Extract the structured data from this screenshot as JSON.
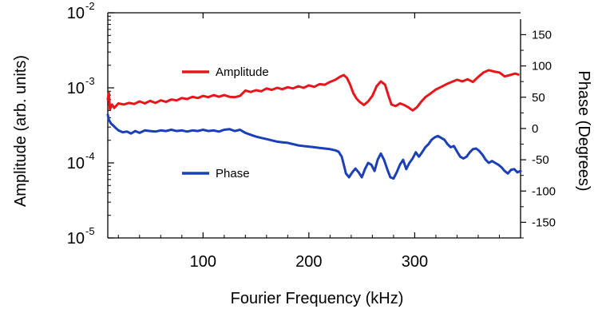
{
  "chart_data": {
    "type": "line",
    "title": "",
    "xlabel": "Fourier Frequency (kHz)",
    "ylabel_left": "Amplitude (arb. units)",
    "ylabel_right": "Phase (Degrees)",
    "x_range": [
      10,
      400
    ],
    "left_axis": {
      "scale": "log",
      "range": [
        1e-05,
        0.01
      ],
      "ticks": [
        {
          "value": 1e-05,
          "base": "10",
          "exp": "-5"
        },
        {
          "value": 0.0001,
          "base": "10",
          "exp": "-4"
        },
        {
          "value": 0.001,
          "base": "10",
          "exp": "-3"
        },
        {
          "value": 0.01,
          "base": "10",
          "exp": "-2"
        }
      ]
    },
    "right_axis": {
      "scale": "linear",
      "range": [
        -175,
        185
      ],
      "ticks": [
        "150",
        "100",
        "50",
        "0",
        "-50",
        "-100",
        "-150"
      ],
      "tick_values": [
        150,
        100,
        50,
        0,
        -50,
        -100,
        -150
      ]
    },
    "x_ticks": [
      "100",
      "200",
      "300"
    ],
    "x_tick_values": [
      100,
      200,
      300
    ],
    "grid": false,
    "legend_placement": "inside-upper-left",
    "series": [
      {
        "name": "Amplitude",
        "axis": "left",
        "color": "#e8161b",
        "points": [
          [
            10,
            0.0007
          ],
          [
            11,
            0.00086
          ],
          [
            12,
            0.00052
          ],
          [
            14,
            0.0006
          ],
          [
            16,
            0.00054
          ],
          [
            20,
            0.00062
          ],
          [
            25,
            0.0006
          ],
          [
            30,
            0.00063
          ],
          [
            35,
            0.00061
          ],
          [
            40,
            0.00066
          ],
          [
            45,
            0.00062
          ],
          [
            50,
            0.00067
          ],
          [
            55,
            0.00063
          ],
          [
            60,
            0.00068
          ],
          [
            65,
            0.00065
          ],
          [
            70,
            0.0007
          ],
          [
            75,
            0.00068
          ],
          [
            80,
            0.00073
          ],
          [
            85,
            0.00071
          ],
          [
            90,
            0.00076
          ],
          [
            95,
            0.00073
          ],
          [
            100,
            0.00078
          ],
          [
            105,
            0.00075
          ],
          [
            110,
            0.0008
          ],
          [
            115,
            0.00076
          ],
          [
            120,
            0.0008
          ],
          [
            125,
            0.00076
          ],
          [
            130,
            0.00075
          ],
          [
            135,
            0.00078
          ],
          [
            140,
            0.00092
          ],
          [
            145,
            0.00088
          ],
          [
            150,
            0.00093
          ],
          [
            155,
            0.0009
          ],
          [
            160,
            0.00098
          ],
          [
            165,
            0.00094
          ],
          [
            170,
            0.001
          ],
          [
            175,
            0.00096
          ],
          [
            180,
            0.00102
          ],
          [
            185,
            0.00098
          ],
          [
            190,
            0.00105
          ],
          [
            195,
            0.001
          ],
          [
            200,
            0.00108
          ],
          [
            205,
            0.00103
          ],
          [
            210,
            0.00112
          ],
          [
            215,
            0.0011
          ],
          [
            220,
            0.0012
          ],
          [
            225,
            0.00128
          ],
          [
            230,
            0.00142
          ],
          [
            233,
            0.00148
          ],
          [
            236,
            0.00135
          ],
          [
            239,
            0.0011
          ],
          [
            242,
            0.00085
          ],
          [
            245,
            0.00072
          ],
          [
            248,
            0.00065
          ],
          [
            252,
            0.00059
          ],
          [
            256,
            0.00066
          ],
          [
            260,
            0.00078
          ],
          [
            264,
            0.00105
          ],
          [
            268,
            0.00122
          ],
          [
            272,
            0.0011
          ],
          [
            275,
            0.0008
          ],
          [
            278,
            0.0006
          ],
          [
            282,
            0.00057
          ],
          [
            286,
            0.00062
          ],
          [
            290,
            0.00059
          ],
          [
            294,
            0.00055
          ],
          [
            298,
            0.0005
          ],
          [
            302,
            0.00055
          ],
          [
            306,
            0.00065
          ],
          [
            310,
            0.00075
          ],
          [
            315,
            0.00084
          ],
          [
            320,
            0.00095
          ],
          [
            325,
            0.00103
          ],
          [
            330,
            0.00112
          ],
          [
            335,
            0.0012
          ],
          [
            340,
            0.00128
          ],
          [
            345,
            0.00122
          ],
          [
            350,
            0.0013
          ],
          [
            355,
            0.0012
          ],
          [
            360,
            0.0014
          ],
          [
            365,
            0.0016
          ],
          [
            370,
            0.00172
          ],
          [
            375,
            0.00165
          ],
          [
            380,
            0.0016
          ],
          [
            385,
            0.00142
          ],
          [
            390,
            0.00148
          ],
          [
            395,
            0.00155
          ],
          [
            398,
            0.0015
          ]
        ]
      },
      {
        "name": "Phase",
        "axis": "right",
        "color": "#1a3fb8",
        "points": [
          [
            10,
            22
          ],
          [
            11,
            14
          ],
          [
            13,
            8
          ],
          [
            15,
            5
          ],
          [
            18,
            0
          ],
          [
            20,
            -3
          ],
          [
            24,
            -6
          ],
          [
            28,
            -5
          ],
          [
            32,
            -8
          ],
          [
            36,
            -4
          ],
          [
            40,
            -7
          ],
          [
            45,
            -3
          ],
          [
            50,
            -4
          ],
          [
            55,
            -5
          ],
          [
            60,
            -3
          ],
          [
            65,
            -4
          ],
          [
            70,
            -2
          ],
          [
            75,
            -4
          ],
          [
            80,
            -3
          ],
          [
            85,
            -5
          ],
          [
            90,
            -3
          ],
          [
            95,
            -4
          ],
          [
            100,
            -2
          ],
          [
            105,
            -4
          ],
          [
            110,
            -3
          ],
          [
            115,
            -5
          ],
          [
            120,
            -2
          ],
          [
            125,
            -1
          ],
          [
            130,
            -4
          ],
          [
            135,
            -2
          ],
          [
            140,
            -7
          ],
          [
            145,
            -10
          ],
          [
            150,
            -13
          ],
          [
            155,
            -15
          ],
          [
            160,
            -17
          ],
          [
            165,
            -19
          ],
          [
            170,
            -21
          ],
          [
            175,
            -22
          ],
          [
            180,
            -23
          ],
          [
            185,
            -25
          ],
          [
            190,
            -27
          ],
          [
            195,
            -28
          ],
          [
            200,
            -29
          ],
          [
            205,
            -30
          ],
          [
            210,
            -31
          ],
          [
            215,
            -32
          ],
          [
            220,
            -33
          ],
          [
            225,
            -35
          ],
          [
            228,
            -37
          ],
          [
            231,
            -45
          ],
          [
            233,
            -58
          ],
          [
            235,
            -72
          ],
          [
            238,
            -78
          ],
          [
            241,
            -70
          ],
          [
            244,
            -64
          ],
          [
            247,
            -70
          ],
          [
            250,
            -78
          ],
          [
            253,
            -65
          ],
          [
            256,
            -55
          ],
          [
            259,
            -58
          ],
          [
            262,
            -68
          ],
          [
            265,
            -50
          ],
          [
            268,
            -40
          ],
          [
            271,
            -50
          ],
          [
            274,
            -65
          ],
          [
            277,
            -78
          ],
          [
            280,
            -80
          ],
          [
            283,
            -70
          ],
          [
            286,
            -58
          ],
          [
            289,
            -50
          ],
          [
            292,
            -65
          ],
          [
            295,
            -55
          ],
          [
            298,
            -48
          ],
          [
            301,
            -38
          ],
          [
            304,
            -45
          ],
          [
            307,
            -38
          ],
          [
            310,
            -30
          ],
          [
            313,
            -25
          ],
          [
            316,
            -18
          ],
          [
            319,
            -14
          ],
          [
            322,
            -12
          ],
          [
            325,
            -15
          ],
          [
            328,
            -18
          ],
          [
            331,
            -25
          ],
          [
            334,
            -30
          ],
          [
            337,
            -28
          ],
          [
            340,
            -37
          ],
          [
            343,
            -45
          ],
          [
            346,
            -48
          ],
          [
            349,
            -45
          ],
          [
            352,
            -38
          ],
          [
            355,
            -33
          ],
          [
            358,
            -32
          ],
          [
            361,
            -36
          ],
          [
            364,
            -42
          ],
          [
            367,
            -50
          ],
          [
            370,
            -55
          ],
          [
            373,
            -52
          ],
          [
            376,
            -55
          ],
          [
            379,
            -58
          ],
          [
            382,
            -62
          ],
          [
            385,
            -68
          ],
          [
            388,
            -72
          ],
          [
            391,
            -66
          ],
          [
            394,
            -65
          ],
          [
            397,
            -70
          ],
          [
            400,
            -68
          ]
        ]
      }
    ]
  }
}
